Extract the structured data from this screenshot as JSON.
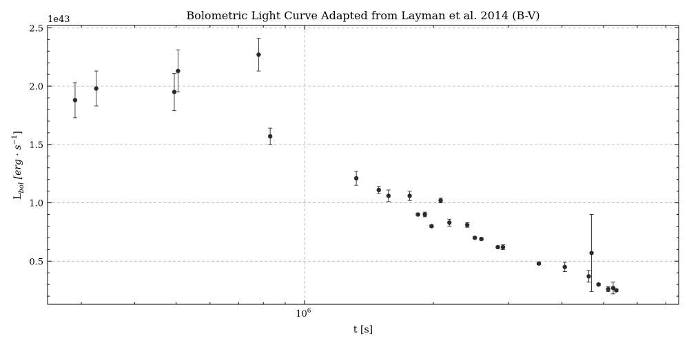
{
  "chart_data": {
    "type": "scatter",
    "title": "Bolometric Light Curve Adapted from Layman et al. 2014 (B-V)",
    "xlabel": "t [s]",
    "ylabel_parts": {
      "base": "L",
      "sub": "bol",
      "unit_pre": " [erg · s",
      "unit_sup": "−1",
      "unit_post": "]"
    },
    "y_offset_label": "1e43",
    "x_scale": "log",
    "xlim": [
      250000,
      7500000
    ],
    "ylim": [
      0.13,
      2.52
    ],
    "grid": true,
    "x_major_ticks": [
      {
        "value": 1000000,
        "base": "10",
        "exp": "6"
      }
    ],
    "x_minor_ticks": [
      300000,
      400000,
      500000,
      600000,
      700000,
      800000,
      900000,
      2000000,
      3000000,
      4000000,
      5000000,
      6000000,
      7000000
    ],
    "y_major_ticks": [
      {
        "value": 0.5,
        "label": "0.5"
      },
      {
        "value": 1.0,
        "label": "1.0"
      },
      {
        "value": 1.5,
        "label": "1.5"
      },
      {
        "value": 2.0,
        "label": "2.0"
      },
      {
        "value": 2.5,
        "label": "2.5"
      }
    ],
    "y_minor_step": 0.1,
    "series": [
      {
        "color": "#2b2b2b",
        "x": [
          290000,
          325000,
          495000,
          505000,
          780000,
          830000,
          1320000,
          1490000,
          1570000,
          1760000,
          1840000,
          1910000,
          1980000,
          2080000,
          2180000,
          2400000,
          2500000,
          2590000,
          2830000,
          2910000,
          3530000,
          4060000,
          4620000,
          4690000,
          4870000,
          5130000,
          5270000,
          5360000
        ],
        "y": [
          1.88,
          1.98,
          1.95,
          2.13,
          2.27,
          1.57,
          1.21,
          1.11,
          1.06,
          1.06,
          0.9,
          0.9,
          0.8,
          1.02,
          0.83,
          0.81,
          0.7,
          0.69,
          0.62,
          0.62,
          0.48,
          0.45,
          0.37,
          0.57,
          0.3,
          0.26,
          0.27,
          0.25
        ],
        "yerr": [
          0.15,
          0.15,
          0.16,
          0.18,
          0.14,
          0.07,
          0.06,
          0.03,
          0.05,
          0.04,
          0.01,
          0.02,
          0.01,
          0.02,
          0.03,
          0.02,
          0.01,
          0.01,
          0.01,
          0.02,
          0.01,
          0.04,
          0.05,
          0.33,
          0.01,
          0.02,
          0.05,
          0.01
        ]
      }
    ]
  }
}
